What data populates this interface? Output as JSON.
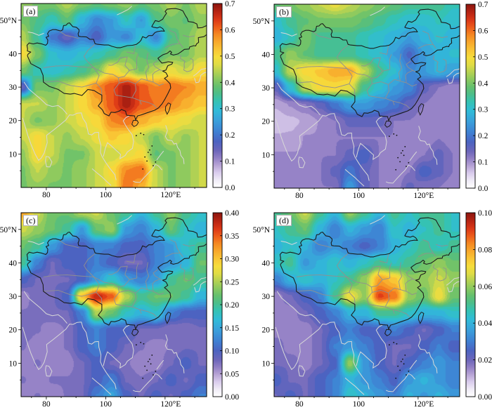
{
  "chart_data": {
    "type": "heatmap",
    "description": "Four filled-contour geographic heatmaps over China and surrounding regions, each with its own colorbar",
    "x_axis": {
      "tick_labels": [
        "80",
        "100",
        "120°E"
      ],
      "tick_lons": [
        80,
        100,
        120
      ],
      "lon_range": [
        71.5,
        134
      ]
    },
    "y_axis": {
      "tick_labels": [
        "50°N",
        "40",
        "30",
        "20",
        "10"
      ],
      "tick_lats": [
        50,
        40,
        30,
        20,
        10
      ],
      "lat_range": [
        0,
        55
      ]
    },
    "grid_lons": [
      72,
      77,
      82,
      87,
      92,
      97,
      102,
      107,
      112,
      117,
      122,
      127,
      132
    ],
    "grid_lats": [
      55,
      50,
      45,
      40,
      35,
      30,
      25,
      20,
      15,
      10,
      5,
      0
    ],
    "colormap": [
      [
        0.0,
        "#ffffff"
      ],
      [
        0.04,
        "#f0ecf7"
      ],
      [
        0.08,
        "#dacded"
      ],
      [
        0.12,
        "#b8a4d6"
      ],
      [
        0.16,
        "#9280c5"
      ],
      [
        0.2,
        "#6d66ba"
      ],
      [
        0.25,
        "#4c63c1"
      ],
      [
        0.3,
        "#3f7fd2"
      ],
      [
        0.36,
        "#3a9fdb"
      ],
      [
        0.42,
        "#30bcd8"
      ],
      [
        0.47,
        "#35c2b2"
      ],
      [
        0.51,
        "#4cbe8a"
      ],
      [
        0.55,
        "#65c06e"
      ],
      [
        0.59,
        "#8bc95f"
      ],
      [
        0.63,
        "#b5d252"
      ],
      [
        0.67,
        "#e0dc45"
      ],
      [
        0.71,
        "#f6dd3b"
      ],
      [
        0.75,
        "#f9c535"
      ],
      [
        0.79,
        "#f8aa2c"
      ],
      [
        0.83,
        "#f58a22"
      ],
      [
        0.87,
        "#ee5f1b"
      ],
      [
        0.91,
        "#dd3a17"
      ],
      [
        0.95,
        "#bc2614"
      ],
      [
        1.0,
        "#8c150e"
      ]
    ],
    "panels": [
      {
        "label": "(a)",
        "colorbar_min": 0.0,
        "colorbar_max": 0.7,
        "colorbar_ticks": [
          "0.0",
          "0.1",
          "0.2",
          "0.3",
          "0.4",
          "0.5",
          "0.6",
          "0.7"
        ],
        "values": [
          [
            0.42,
            0.4,
            0.4,
            0.44,
            0.4,
            0.38,
            0.4,
            0.42,
            0.38,
            0.4,
            0.44,
            0.4,
            0.44
          ],
          [
            0.4,
            0.36,
            0.32,
            0.38,
            0.28,
            0.22,
            0.25,
            0.32,
            0.25,
            0.36,
            0.4,
            0.38,
            0.42
          ],
          [
            0.44,
            0.34,
            0.2,
            0.15,
            0.22,
            0.17,
            0.25,
            0.22,
            0.3,
            0.22,
            0.36,
            0.4,
            0.44
          ],
          [
            0.5,
            0.4,
            0.3,
            0.28,
            0.3,
            0.32,
            0.35,
            0.4,
            0.38,
            0.35,
            0.4,
            0.4,
            0.44
          ],
          [
            0.4,
            0.32,
            0.3,
            0.32,
            0.35,
            0.4,
            0.5,
            0.45,
            0.4,
            0.45,
            0.48,
            0.45,
            0.5
          ],
          [
            0.15,
            0.4,
            0.4,
            0.45,
            0.5,
            0.58,
            0.62,
            0.68,
            0.62,
            0.58,
            0.6,
            0.58,
            0.55
          ],
          [
            0.45,
            0.45,
            0.42,
            0.45,
            0.5,
            0.55,
            0.62,
            0.68,
            0.62,
            0.6,
            0.58,
            0.55,
            0.52
          ],
          [
            0.45,
            0.4,
            0.42,
            0.45,
            0.48,
            0.5,
            0.58,
            0.6,
            0.55,
            0.52,
            0.5,
            0.48,
            0.45
          ],
          [
            0.45,
            0.5,
            0.45,
            0.42,
            0.45,
            0.48,
            0.52,
            0.5,
            0.45,
            0.4,
            0.45,
            0.42,
            0.45
          ],
          [
            0.42,
            0.5,
            0.45,
            0.4,
            0.4,
            0.45,
            0.45,
            0.48,
            0.5,
            0.38,
            0.4,
            0.42,
            0.45
          ],
          [
            0.4,
            0.45,
            0.42,
            0.4,
            0.42,
            0.45,
            0.5,
            0.58,
            0.6,
            0.45,
            0.4,
            0.42,
            0.45
          ],
          [
            0.4,
            0.42,
            0.4,
            0.4,
            0.42,
            0.45,
            0.48,
            0.6,
            0.55,
            0.45,
            0.4,
            0.42,
            0.45
          ]
        ]
      },
      {
        "label": "(b)",
        "colorbar_min": 0.0,
        "colorbar_max": 0.7,
        "colorbar_ticks": [
          "0.0",
          "0.1",
          "0.2",
          "0.3",
          "0.4",
          "0.5",
          "0.6",
          "0.7"
        ],
        "values": [
          [
            0.38,
            0.4,
            0.42,
            0.45,
            0.48,
            0.45,
            0.42,
            0.4,
            0.38,
            0.35,
            0.35,
            0.35,
            0.32
          ],
          [
            0.3,
            0.35,
            0.38,
            0.4,
            0.4,
            0.4,
            0.38,
            0.35,
            0.32,
            0.3,
            0.3,
            0.32,
            0.3
          ],
          [
            0.28,
            0.32,
            0.4,
            0.35,
            0.35,
            0.35,
            0.32,
            0.3,
            0.28,
            0.25,
            0.28,
            0.3,
            0.28
          ],
          [
            0.35,
            0.42,
            0.38,
            0.35,
            0.35,
            0.35,
            0.32,
            0.3,
            0.25,
            0.18,
            0.25,
            0.28,
            0.3
          ],
          [
            0.3,
            0.45,
            0.5,
            0.52,
            0.55,
            0.55,
            0.45,
            0.35,
            0.3,
            0.22,
            0.25,
            0.28,
            0.25
          ],
          [
            0.15,
            0.3,
            0.45,
            0.5,
            0.5,
            0.48,
            0.35,
            0.3,
            0.25,
            0.22,
            0.15,
            0.12,
            0.1
          ],
          [
            0.08,
            0.1,
            0.12,
            0.15,
            0.2,
            0.25,
            0.25,
            0.22,
            0.2,
            0.15,
            0.12,
            0.1,
            0.12
          ],
          [
            0.06,
            0.07,
            0.08,
            0.1,
            0.12,
            0.15,
            0.15,
            0.15,
            0.12,
            0.12,
            0.1,
            0.1,
            0.1
          ],
          [
            0.08,
            0.08,
            0.1,
            0.1,
            0.12,
            0.12,
            0.12,
            0.12,
            0.12,
            0.1,
            0.1,
            0.12,
            0.1
          ],
          [
            0.1,
            0.1,
            0.1,
            0.12,
            0.12,
            0.15,
            0.18,
            0.12,
            0.1,
            0.1,
            0.12,
            0.15,
            0.12
          ],
          [
            0.12,
            0.1,
            0.12,
            0.12,
            0.15,
            0.2,
            0.15,
            0.12,
            0.1,
            0.12,
            0.18,
            0.15,
            0.12
          ],
          [
            0.1,
            0.1,
            0.1,
            0.12,
            0.12,
            0.25,
            0.15,
            0.12,
            0.1,
            0.15,
            0.12,
            0.12,
            0.1
          ]
        ]
      },
      {
        "label": "(c)",
        "colorbar_min": 0.0,
        "colorbar_max": 0.4,
        "colorbar_ticks": [
          "0.00",
          "0.05",
          "0.10",
          "0.15",
          "0.20",
          "0.25",
          "0.30",
          "0.35",
          "0.40"
        ],
        "values": [
          [
            0.32,
            0.26,
            0.22,
            0.22,
            0.25,
            0.26,
            0.22,
            0.2,
            0.16,
            0.2,
            0.24,
            0.2,
            0.18
          ],
          [
            0.26,
            0.24,
            0.22,
            0.2,
            0.14,
            0.22,
            0.24,
            0.14,
            0.12,
            0.16,
            0.22,
            0.18,
            0.16
          ],
          [
            0.22,
            0.2,
            0.14,
            0.1,
            0.1,
            0.12,
            0.12,
            0.1,
            0.1,
            0.12,
            0.14,
            0.18,
            0.2
          ],
          [
            0.2,
            0.12,
            0.08,
            0.1,
            0.1,
            0.12,
            0.1,
            0.08,
            0.08,
            0.12,
            0.14,
            0.16,
            0.22
          ],
          [
            0.1,
            0.08,
            0.08,
            0.08,
            0.1,
            0.14,
            0.18,
            0.14,
            0.12,
            0.14,
            0.2,
            0.22,
            0.2
          ],
          [
            0.06,
            0.08,
            0.08,
            0.1,
            0.3,
            0.38,
            0.35,
            0.25,
            0.2,
            0.22,
            0.22,
            0.2,
            0.16
          ],
          [
            0.07,
            0.07,
            0.08,
            0.08,
            0.12,
            0.25,
            0.22,
            0.18,
            0.16,
            0.18,
            0.12,
            0.1,
            0.1
          ],
          [
            0.08,
            0.07,
            0.06,
            0.07,
            0.1,
            0.12,
            0.1,
            0.1,
            0.08,
            0.08,
            0.07,
            0.07,
            0.08
          ],
          [
            0.07,
            0.06,
            0.06,
            0.07,
            0.1,
            0.12,
            0.1,
            0.08,
            0.07,
            0.06,
            0.07,
            0.08,
            0.08
          ],
          [
            0.06,
            0.07,
            0.06,
            0.06,
            0.08,
            0.1,
            0.08,
            0.07,
            0.06,
            0.06,
            0.08,
            0.1,
            0.08
          ],
          [
            0.07,
            0.06,
            0.07,
            0.07,
            0.08,
            0.1,
            0.12,
            0.08,
            0.07,
            0.08,
            0.1,
            0.08,
            0.1
          ],
          [
            0.06,
            0.07,
            0.06,
            0.07,
            0.08,
            0.12,
            0.15,
            0.1,
            0.08,
            0.1,
            0.08,
            0.1,
            0.12
          ]
        ]
      },
      {
        "label": "(d)",
        "colorbar_min": 0.0,
        "colorbar_max": 0.1,
        "colorbar_ticks": [
          "0.00",
          "0.02",
          "0.04",
          "0.06",
          "0.08",
          "0.10"
        ],
        "values": [
          [
            0.05,
            0.055,
            0.065,
            0.05,
            0.04,
            0.06,
            0.05,
            0.04,
            0.05,
            0.045,
            0.05,
            0.05,
            0.045
          ],
          [
            0.045,
            0.05,
            0.055,
            0.04,
            0.03,
            0.04,
            0.035,
            0.03,
            0.045,
            0.04,
            0.045,
            0.05,
            0.045
          ],
          [
            0.04,
            0.045,
            0.04,
            0.03,
            0.035,
            0.03,
            0.025,
            0.03,
            0.04,
            0.045,
            0.05,
            0.045,
            0.05
          ],
          [
            0.045,
            0.05,
            0.035,
            0.04,
            0.045,
            0.04,
            0.045,
            0.05,
            0.045,
            0.05,
            0.055,
            0.06,
            0.055
          ],
          [
            0.03,
            0.04,
            0.045,
            0.04,
            0.045,
            0.05,
            0.06,
            0.08,
            0.075,
            0.06,
            0.06,
            0.065,
            0.06
          ],
          [
            0.015,
            0.02,
            0.025,
            0.03,
            0.05,
            0.07,
            0.06,
            0.09,
            0.085,
            0.06,
            0.055,
            0.07,
            0.055
          ],
          [
            0.015,
            0.015,
            0.02,
            0.025,
            0.03,
            0.04,
            0.04,
            0.05,
            0.05,
            0.045,
            0.04,
            0.04,
            0.045
          ],
          [
            0.015,
            0.015,
            0.015,
            0.02,
            0.025,
            0.03,
            0.025,
            0.025,
            0.03,
            0.025,
            0.02,
            0.025,
            0.03
          ],
          [
            0.02,
            0.015,
            0.015,
            0.02,
            0.03,
            0.035,
            0.03,
            0.025,
            0.02,
            0.02,
            0.025,
            0.03,
            0.025
          ],
          [
            0.02,
            0.02,
            0.015,
            0.02,
            0.025,
            0.06,
            0.035,
            0.025,
            0.02,
            0.025,
            0.03,
            0.035,
            0.03
          ],
          [
            0.025,
            0.02,
            0.02,
            0.025,
            0.03,
            0.04,
            0.035,
            0.03,
            0.025,
            0.035,
            0.04,
            0.035,
            0.03
          ],
          [
            0.02,
            0.025,
            0.02,
            0.025,
            0.03,
            0.045,
            0.04,
            0.035,
            0.03,
            0.04,
            0.035,
            0.04,
            0.035
          ]
        ]
      }
    ]
  }
}
